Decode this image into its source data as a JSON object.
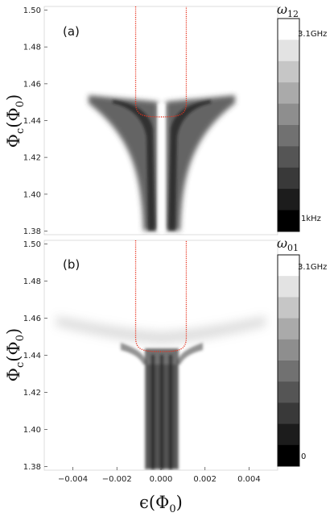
{
  "chart_data": [
    {
      "type": "heatmap",
      "panel_label": "(a)",
      "ylabel_main": "Φ",
      "ylabel_sub": "c",
      "ylabel_paren": "(Φ",
      "ylabel_paren_sub": "0",
      "ylabel_close": ")",
      "xlim": [
        -0.0053,
        0.0053
      ],
      "ylim": [
        1.378,
        1.502
      ],
      "yticks": [
        "1.38",
        "1.40",
        "1.42",
        "1.44",
        "1.46",
        "1.48",
        "1.50"
      ],
      "ytick_values": [
        1.38,
        1.4,
        1.42,
        1.44,
        1.46,
        1.48,
        1.5
      ],
      "colorbar": {
        "title_main": "ω",
        "title_sub": "12",
        "max_label": "3.1GHz",
        "min_label": "1kHz",
        "levels": 10
      },
      "red_curve": {
        "color": "#e8321e",
        "x_left": -0.00115,
        "x_right": 0.00115,
        "y_bottom": 1.442,
        "y_top": 1.502
      }
    },
    {
      "type": "heatmap",
      "panel_label": "(b)",
      "ylabel_main": "Φ",
      "ylabel_sub": "c",
      "ylabel_paren": "(Φ",
      "ylabel_paren_sub": "0",
      "ylabel_close": ")",
      "xlim": [
        -0.0053,
        0.0053
      ],
      "ylim": [
        1.378,
        1.502
      ],
      "yticks": [
        "1.38",
        "1.40",
        "1.42",
        "1.44",
        "1.46",
        "1.48",
        "1.50"
      ],
      "ytick_values": [
        1.38,
        1.4,
        1.42,
        1.44,
        1.46,
        1.48,
        1.5
      ],
      "xticks": [
        "−0.004",
        "−0.002",
        "0.000",
        "0.002",
        "0.004"
      ],
      "xtick_values": [
        -0.004,
        -0.002,
        0.0,
        0.002,
        0.004
      ],
      "xlabel_main": "ϵ(Φ",
      "xlabel_sub": "0",
      "xlabel_close": ")",
      "colorbar": {
        "title_main": "ω",
        "title_sub": "01",
        "max_label": "3.1GHz",
        "min_label": "0",
        "levels": 10
      },
      "red_curve": {
        "color": "#e8321e",
        "x_left": -0.00115,
        "x_right": 0.00115,
        "y_bottom": 1.442,
        "y_top": 1.502
      }
    }
  ]
}
